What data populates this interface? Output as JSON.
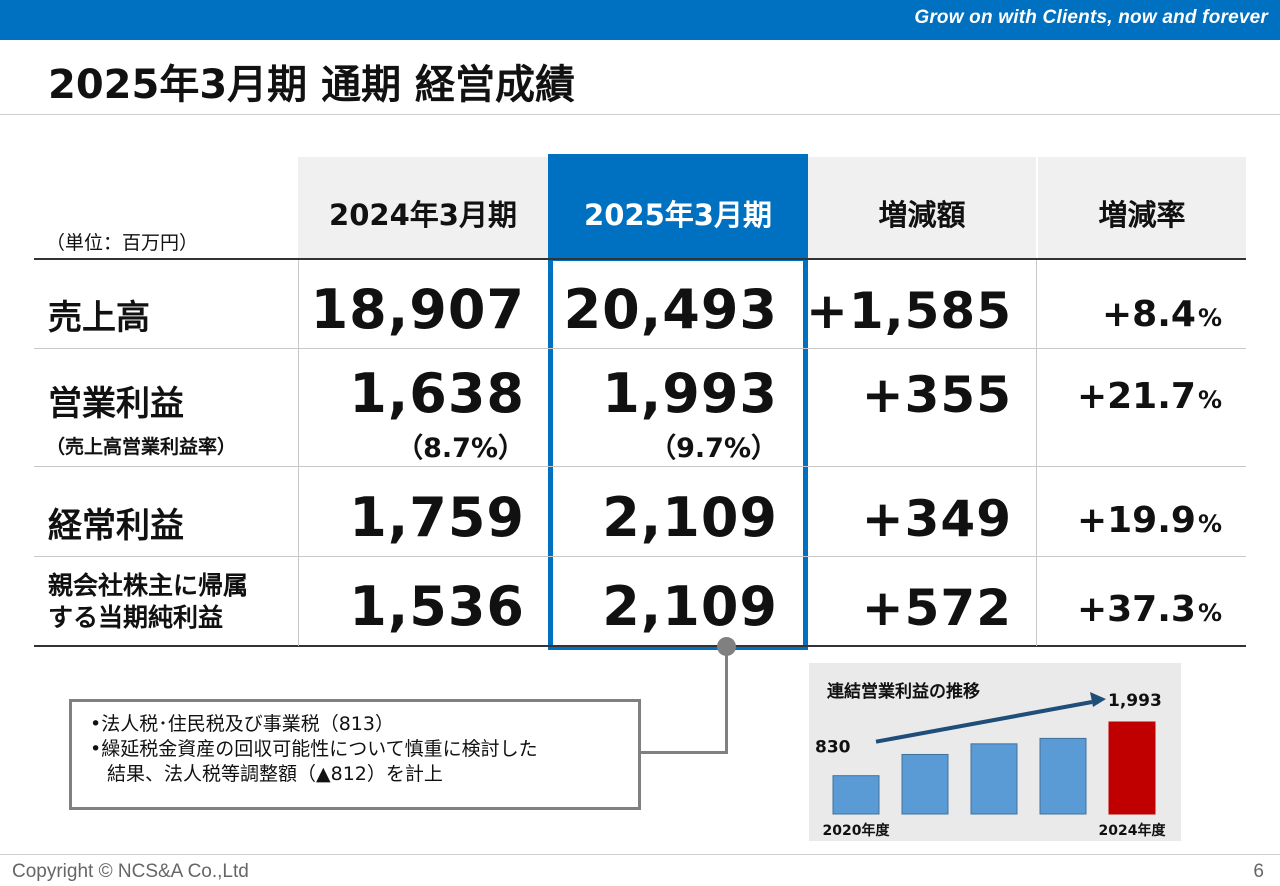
{
  "header": {
    "tagline": "Grow on with Clients, now and forever"
  },
  "title": "2025年3月期 通期 経営成績",
  "table": {
    "unit": "（単位：百万円）",
    "columns": [
      "2024年3月期",
      "2025年3月期",
      "増減額",
      "増減率"
    ],
    "rows": [
      {
        "label": "売上高",
        "v2024": "18,907",
        "v2025": "20,493",
        "diff": "+1,585",
        "rate": "+8.4",
        "pct_symbol": "%"
      },
      {
        "label": "営業利益",
        "sublabel": "（売上高営業利益率）",
        "v2024": "1,638",
        "v2025": "1,993",
        "ratio2024": "（8.7%）",
        "ratio2025": "（9.7%）",
        "diff": "+355",
        "rate": "+21.7",
        "pct_symbol": "%"
      },
      {
        "label": "経常利益",
        "v2024": "1,759",
        "v2025": "2,109",
        "diff": "+349",
        "rate": "+19.9",
        "pct_symbol": "%"
      },
      {
        "label_line1": "親会社株主に帰属",
        "label_line2": "する当期純利益",
        "v2024": "1,536",
        "v2025": "2,109",
        "diff": "+572",
        "rate": "+37.3",
        "pct_symbol": "%"
      }
    ]
  },
  "note": {
    "line1": "•法人税･住民税及び事業税（813）",
    "line2": "•繰延税金資産の回収可能性について慎重に検討した",
    "line3": "結果、法人税等調整額（▲812）を計上"
  },
  "chart_data": {
    "type": "bar",
    "title": "連結営業利益の推移",
    "categories": [
      "2020年度",
      "",
      "",
      "",
      "2024年度"
    ],
    "values": [
      830,
      1290,
      1520,
      1638,
      1993
    ],
    "labels": [
      "830",
      "",
      "",
      "",
      "1,993"
    ],
    "colors": [
      "#5b9bd5",
      "#5b9bd5",
      "#5b9bd5",
      "#5b9bd5",
      "#c00000"
    ],
    "ylim": [
      0,
      1993
    ]
  },
  "footer": {
    "copyright": "Copyright © NCS&A Co.,Ltd",
    "page": "6"
  }
}
